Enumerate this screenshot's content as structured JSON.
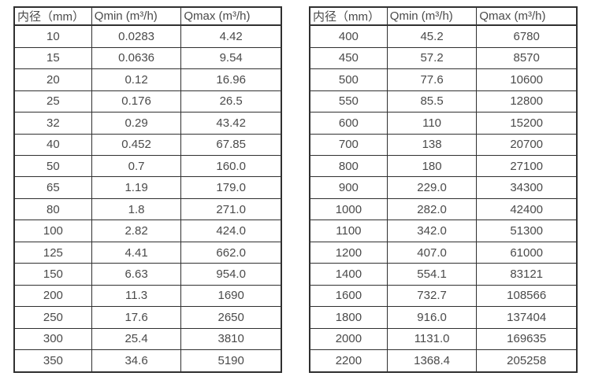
{
  "colors": {
    "border": "#303030",
    "text": "#4a4a4a",
    "background": "#ffffff"
  },
  "tables": [
    {
      "name": "flow-rate-table-small-diameters",
      "headers": [
        "内径（mm）",
        "Qmin (m³/h)",
        "Qmax (m³/h)"
      ],
      "rows": [
        [
          "10",
          "0.0283",
          "4.42"
        ],
        [
          "15",
          "0.0636",
          "9.54"
        ],
        [
          "20",
          "0.12",
          "16.96"
        ],
        [
          "25",
          "0.176",
          "26.5"
        ],
        [
          "32",
          "0.29",
          "43.42"
        ],
        [
          "40",
          "0.452",
          "67.85"
        ],
        [
          "50",
          "0.7",
          "160.0"
        ],
        [
          "65",
          "1.19",
          "179.0"
        ],
        [
          "80",
          "1.8",
          "271.0"
        ],
        [
          "100",
          "2.82",
          "424.0"
        ],
        [
          "125",
          "4.41",
          "662.0"
        ],
        [
          "150",
          "6.63",
          "954.0"
        ],
        [
          "200",
          "11.3",
          "1690"
        ],
        [
          "250",
          "17.6",
          "2650"
        ],
        [
          "300",
          "25.4",
          "3810"
        ],
        [
          "350",
          "34.6",
          "5190"
        ]
      ]
    },
    {
      "name": "flow-rate-table-large-diameters",
      "headers": [
        "内径（mm）",
        "Qmin (m³/h)",
        "Qmax (m³/h)"
      ],
      "rows": [
        [
          "400",
          "45.2",
          "6780"
        ],
        [
          "450",
          "57.2",
          "8570"
        ],
        [
          "500",
          "77.6",
          "10600"
        ],
        [
          "550",
          "85.5",
          "12800"
        ],
        [
          "600",
          "110",
          "15200"
        ],
        [
          "700",
          "138",
          "20700"
        ],
        [
          "800",
          "180",
          "27100"
        ],
        [
          "900",
          "229.0",
          "34300"
        ],
        [
          "1000",
          "282.0",
          "42400"
        ],
        [
          "1100",
          "342.0",
          "51300"
        ],
        [
          "1200",
          "407.0",
          "61000"
        ],
        [
          "1400",
          "554.1",
          "83121"
        ],
        [
          "1600",
          "732.7",
          "108566"
        ],
        [
          "1800",
          "916.0",
          "137404"
        ],
        [
          "2000",
          "1131.0",
          "169635"
        ],
        [
          "2200",
          "1368.4",
          "205258"
        ]
      ]
    }
  ]
}
